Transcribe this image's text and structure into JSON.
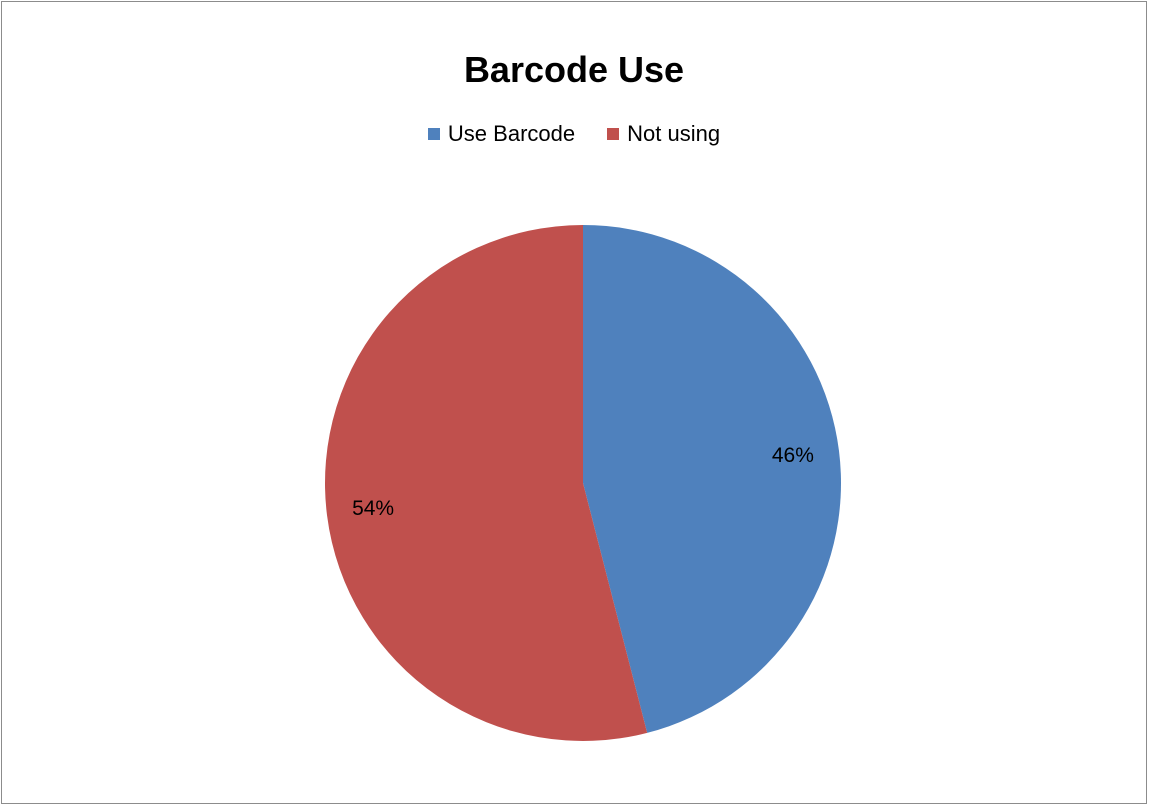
{
  "chart_data": {
    "type": "pie",
    "title": "Barcode Use",
    "categories": [
      "Use Barcode",
      "Not using"
    ],
    "values": [
      46,
      54
    ],
    "data_labels": [
      "46%",
      "54%"
    ],
    "colors": [
      "#4f81bd",
      "#c0504d"
    ],
    "legend_placement": "top",
    "start_angle": "12 o'clock, clockwise"
  }
}
